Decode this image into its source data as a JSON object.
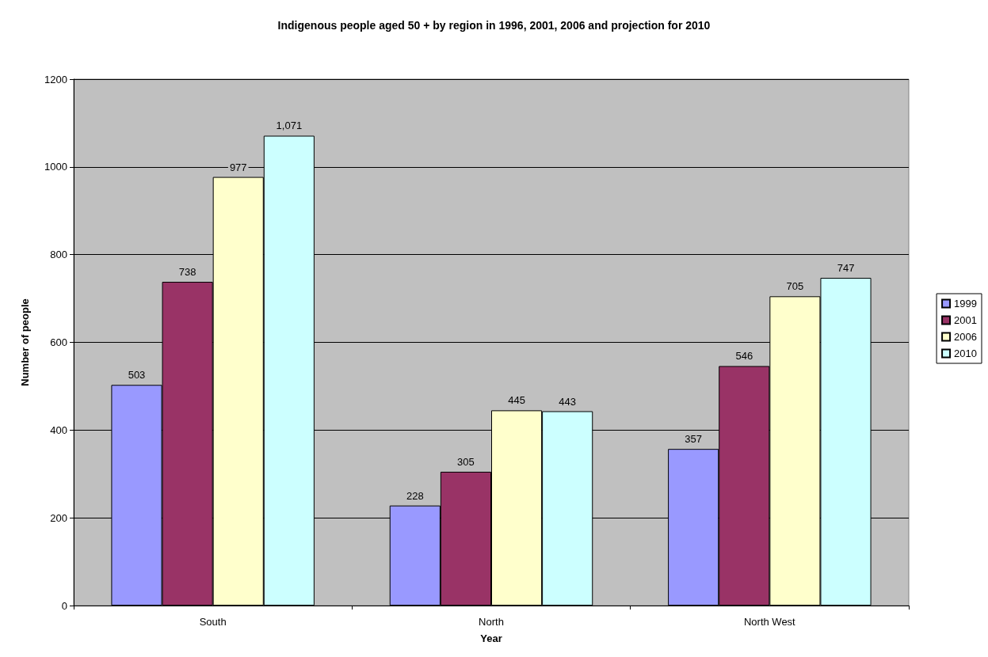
{
  "chart_data": {
    "type": "bar",
    "title": "Indigenous people aged 50 + by region in 1996, 2001, 2006 and projection for 2010",
    "xlabel": "Year",
    "ylabel": "Number of people",
    "categories": [
      "South",
      "North",
      "North West"
    ],
    "series": [
      {
        "name": "1999",
        "color": "#9999ff",
        "values": [
          503,
          228,
          357
        ],
        "value_labels": [
          "503",
          "228",
          "357"
        ]
      },
      {
        "name": "2001",
        "color": "#993366",
        "values": [
          738,
          305,
          546
        ],
        "value_labels": [
          "738",
          "305",
          "546"
        ]
      },
      {
        "name": "2006",
        "color": "#ffffcc",
        "values": [
          977,
          445,
          705
        ],
        "value_labels": [
          "977",
          "445",
          "705"
        ]
      },
      {
        "name": "2010",
        "color": "#ccffff",
        "values": [
          1071,
          443,
          747
        ],
        "value_labels": [
          "1,071",
          "443",
          "747"
        ]
      }
    ],
    "ylim": [
      0,
      1200
    ],
    "yticks": [
      0,
      200,
      400,
      600,
      800,
      1000,
      1200
    ],
    "grid": "y",
    "legend": "right"
  }
}
